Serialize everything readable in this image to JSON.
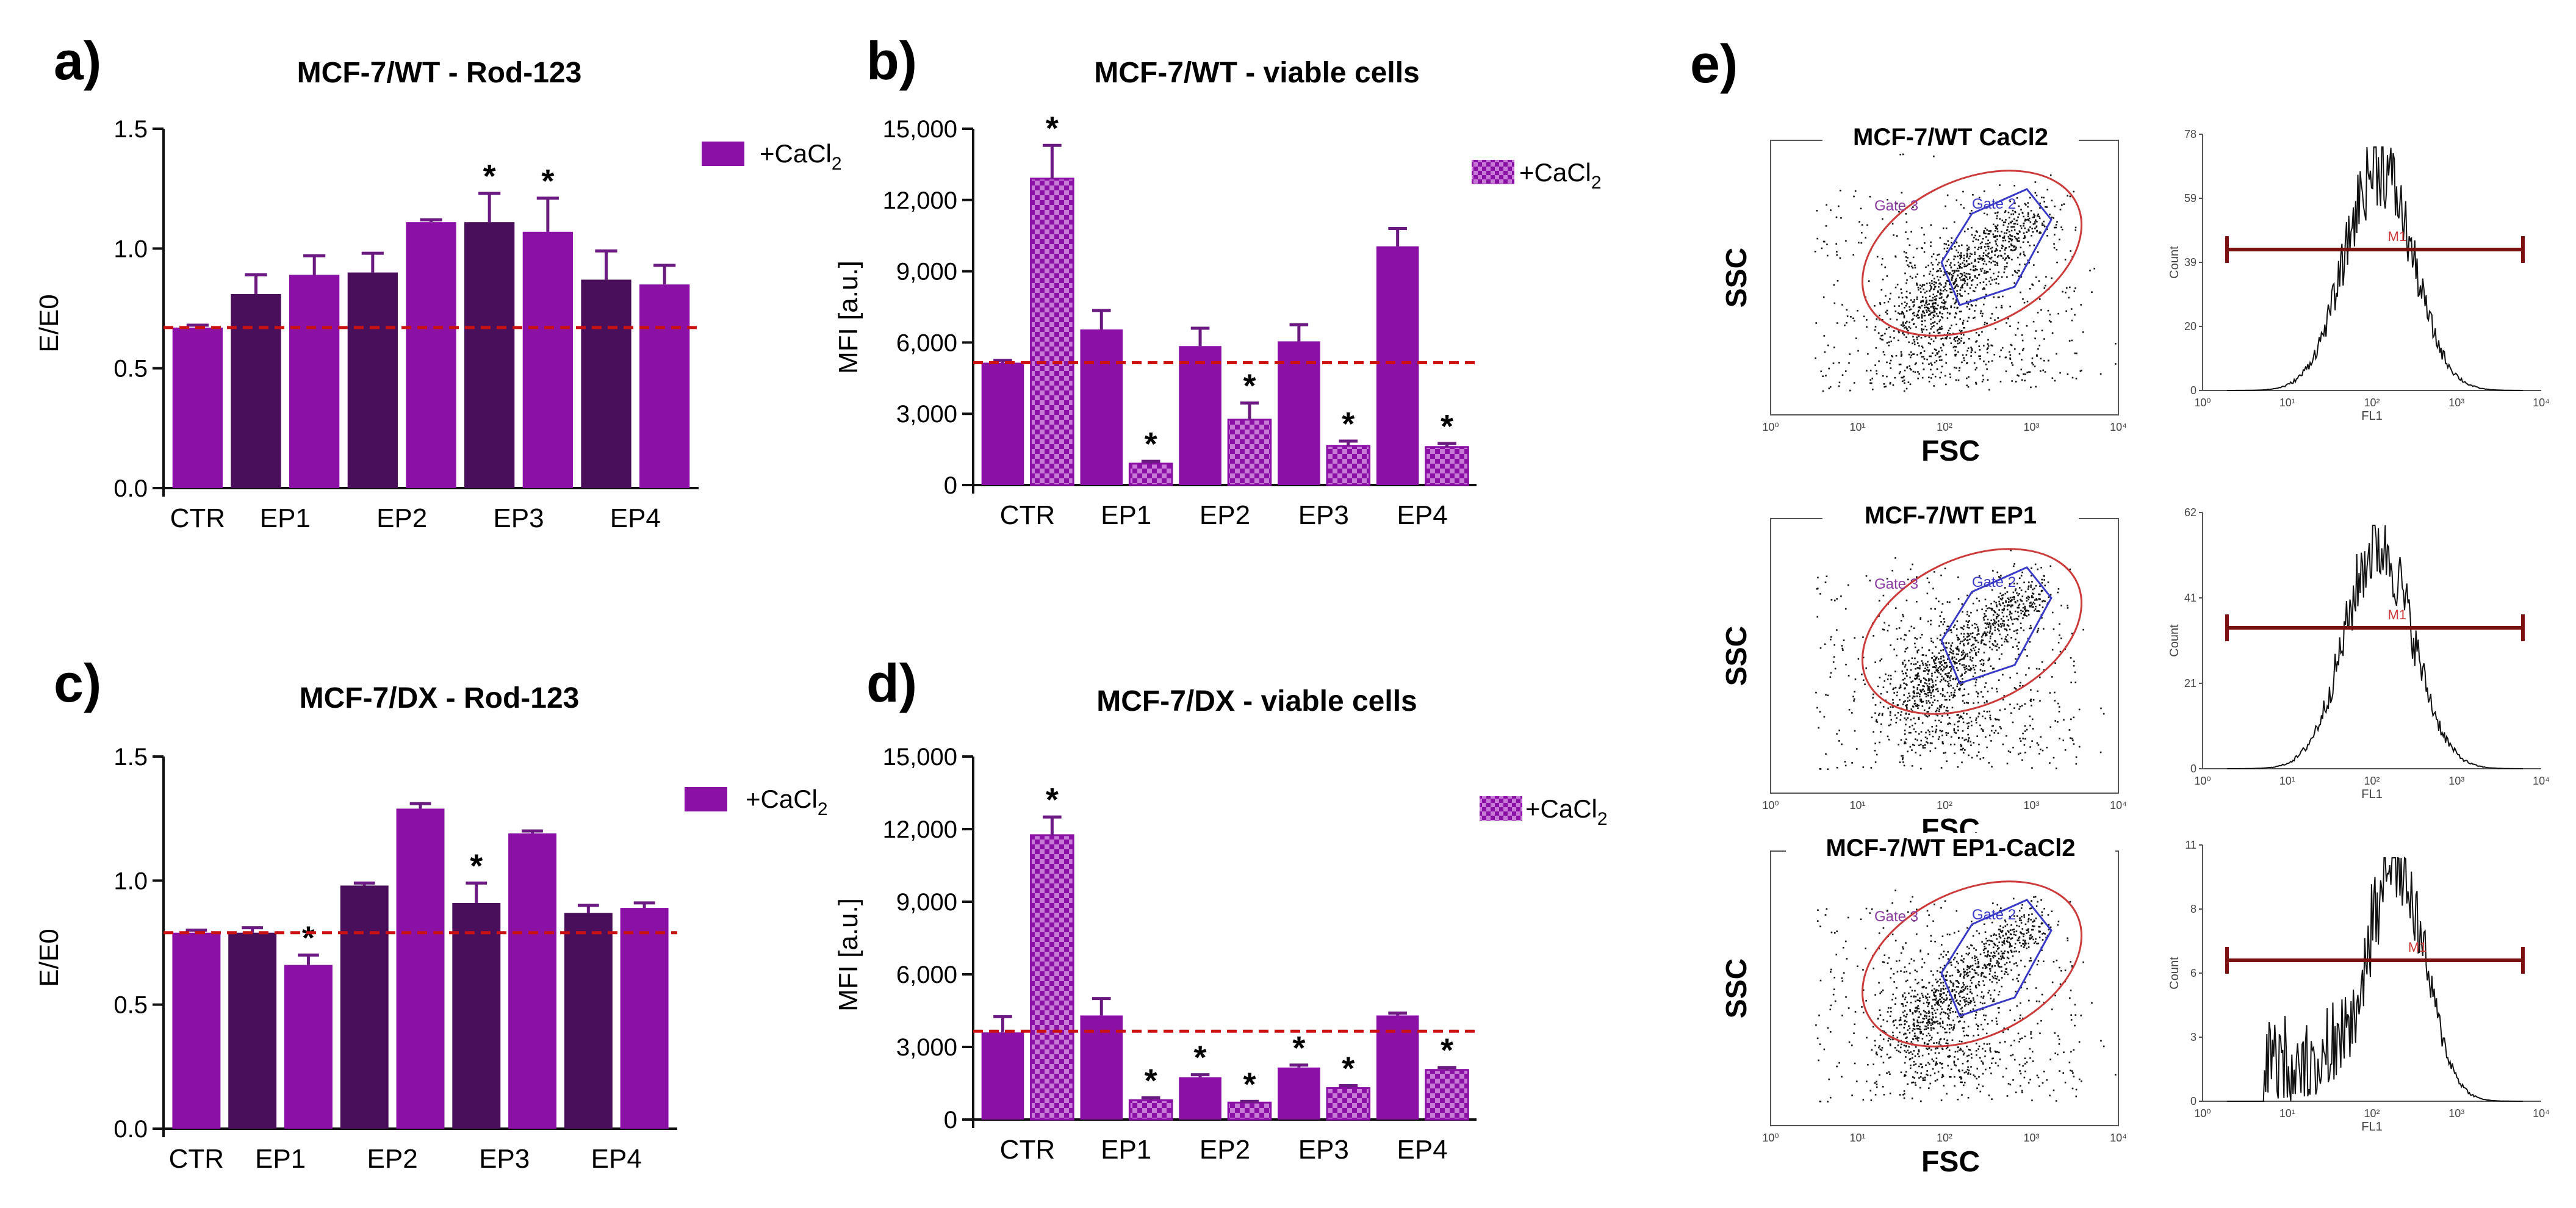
{
  "panels": {
    "a": {
      "label": "a)"
    },
    "b": {
      "label": "b)"
    },
    "c": {
      "label": "c)"
    },
    "d": {
      "label": "d)"
    },
    "e": {
      "label": "e)"
    }
  },
  "colors": {
    "solid_bar": "#8b10a6",
    "dark_bar": "#4a0f5a",
    "check_bar": "#c77ad6",
    "check_dark": "#8b10a6",
    "error": "#6a1a80",
    "reference_line": "#cc1111",
    "gate_red": "#cc3a3a",
    "gate_blue": "#3a3ac8",
    "gate_text": "#8a3aa0",
    "marker_bar": "#7a1010"
  },
  "legend": {
    "cacl2_prefix": "+CaCl",
    "cacl2_sub": "2"
  },
  "chart_data": [
    {
      "id": "a",
      "type": "bar",
      "title": "MCF-7/WT - Rod-123",
      "ylabel": "E/E0",
      "xlabel": "",
      "ylim": [
        0,
        1.5
      ],
      "yticks": [
        0.0,
        0.5,
        1.0,
        1.5
      ],
      "ytick_labels": [
        "0.0",
        "0.5",
        "1.0",
        "1.5"
      ],
      "categories": [
        "CTR",
        "EP1",
        "EP2",
        "EP3",
        "EP4"
      ],
      "reference_line": 0.67,
      "legend": "+CaCl2",
      "bars": [
        {
          "group": "CTR",
          "value": 0.67,
          "error": 0.01,
          "style": "solid",
          "star": false
        },
        {
          "group": "EP1",
          "value": 0.81,
          "error": 0.08,
          "style": "dark",
          "star": false
        },
        {
          "group": "EP1",
          "value": 0.89,
          "error": 0.08,
          "style": "solid",
          "star": false
        },
        {
          "group": "EP2",
          "value": 0.9,
          "error": 0.08,
          "style": "dark",
          "star": false
        },
        {
          "group": "EP2",
          "value": 1.11,
          "error": 0.01,
          "style": "solid",
          "star": false
        },
        {
          "group": "EP3",
          "value": 1.11,
          "error": 0.12,
          "style": "dark",
          "star": true
        },
        {
          "group": "EP3",
          "value": 1.07,
          "error": 0.14,
          "style": "solid",
          "star": true
        },
        {
          "group": "EP4",
          "value": 0.87,
          "error": 0.12,
          "style": "dark",
          "star": false
        },
        {
          "group": "EP4",
          "value": 0.85,
          "error": 0.08,
          "style": "solid",
          "star": false
        }
      ]
    },
    {
      "id": "b",
      "type": "bar",
      "title": "MCF-7/WT - viable cells",
      "ylabel": "MFI [a.u.]",
      "xlabel": "",
      "ylim": [
        0,
        15000
      ],
      "yticks": [
        0,
        3000,
        6000,
        9000,
        12000,
        15000
      ],
      "ytick_labels": [
        "0",
        "3,000",
        "6,000",
        "9,000",
        "12,000",
        "15,000"
      ],
      "categories": [
        "CTR",
        "EP1",
        "EP2",
        "EP3",
        "EP4"
      ],
      "reference_line": 5150,
      "legend": "+CaCl2",
      "bars": [
        {
          "group": "CTR",
          "value": 5150,
          "error": 100,
          "style": "solid",
          "star": false
        },
        {
          "group": "CTR",
          "value": 12900,
          "error": 1400,
          "style": "check",
          "star": true
        },
        {
          "group": "EP1",
          "value": 6550,
          "error": 800,
          "style": "solid",
          "star": false
        },
        {
          "group": "EP1",
          "value": 900,
          "error": 100,
          "style": "check",
          "star": true
        },
        {
          "group": "EP2",
          "value": 5850,
          "error": 750,
          "style": "solid",
          "star": false
        },
        {
          "group": "EP2",
          "value": 2750,
          "error": 700,
          "style": "check",
          "star": true
        },
        {
          "group": "EP3",
          "value": 6050,
          "error": 700,
          "style": "solid",
          "star": false
        },
        {
          "group": "EP3",
          "value": 1650,
          "error": 200,
          "style": "check",
          "star": true
        },
        {
          "group": "EP4",
          "value": 10050,
          "error": 750,
          "style": "solid",
          "star": false
        },
        {
          "group": "EP4",
          "value": 1600,
          "error": 150,
          "style": "check",
          "star": true
        }
      ]
    },
    {
      "id": "c",
      "type": "bar",
      "title": "MCF-7/DX - Rod-123",
      "ylabel": "E/E0",
      "xlabel": "",
      "ylim": [
        0,
        1.5
      ],
      "yticks": [
        0.0,
        0.5,
        1.0,
        1.5
      ],
      "ytick_labels": [
        "0.0",
        "0.5",
        "1.0",
        "1.5"
      ],
      "categories": [
        "CTR",
        "EP1",
        "EP2",
        "EP3",
        "EP4"
      ],
      "reference_line": 0.79,
      "legend": "+CaCl2",
      "bars": [
        {
          "group": "CTR",
          "value": 0.79,
          "error": 0.01,
          "style": "solid",
          "star": false
        },
        {
          "group": "EP1",
          "value": 0.79,
          "error": 0.02,
          "style": "dark",
          "star": false
        },
        {
          "group": "EP1",
          "value": 0.66,
          "error": 0.04,
          "style": "solid",
          "star": true
        },
        {
          "group": "EP2",
          "value": 0.98,
          "error": 0.01,
          "style": "dark",
          "star": false
        },
        {
          "group": "EP2",
          "value": 1.29,
          "error": 0.02,
          "style": "solid",
          "star": false
        },
        {
          "group": "EP3",
          "value": 0.91,
          "error": 0.08,
          "style": "dark",
          "star": true
        },
        {
          "group": "EP3",
          "value": 1.19,
          "error": 0.01,
          "style": "solid",
          "star": false
        },
        {
          "group": "EP4",
          "value": 0.87,
          "error": 0.03,
          "style": "dark",
          "star": false
        },
        {
          "group": "EP4",
          "value": 0.89,
          "error": 0.02,
          "style": "solid",
          "star": false
        }
      ]
    },
    {
      "id": "d",
      "type": "bar",
      "title": "MCF-7/DX - viable cells",
      "ylabel": "MFI [a.u.]",
      "xlabel": "",
      "ylim": [
        0,
        15000
      ],
      "yticks": [
        0,
        3000,
        6000,
        9000,
        12000,
        15000
      ],
      "ytick_labels": [
        "0",
        "3,000",
        "6,000",
        "9,000",
        "12,000",
        "15,000"
      ],
      "categories": [
        "CTR",
        "EP1",
        "EP2",
        "EP3",
        "EP4"
      ],
      "reference_line": 3650,
      "legend": "+CaCl2",
      "bars": [
        {
          "group": "CTR",
          "value": 3600,
          "error": 650,
          "style": "solid",
          "star": false
        },
        {
          "group": "CTR",
          "value": 11750,
          "error": 750,
          "style": "check",
          "star": true
        },
        {
          "group": "EP1",
          "value": 4300,
          "error": 700,
          "style": "solid",
          "star": false
        },
        {
          "group": "EP1",
          "value": 800,
          "error": 100,
          "style": "check",
          "star": true
        },
        {
          "group": "EP2",
          "value": 1750,
          "error": 100,
          "style": "solid",
          "star": true
        },
        {
          "group": "EP2",
          "value": 700,
          "error": 50,
          "style": "check",
          "star": true
        },
        {
          "group": "EP3",
          "value": 2150,
          "error": 100,
          "style": "solid",
          "star": true
        },
        {
          "group": "EP3",
          "value": 1300,
          "error": 100,
          "style": "check",
          "star": true
        },
        {
          "group": "EP4",
          "value": 4300,
          "error": 100,
          "style": "solid",
          "star": false
        },
        {
          "group": "EP4",
          "value": 2050,
          "error": 100,
          "style": "check",
          "star": true
        }
      ]
    }
  ],
  "flow": {
    "rows": [
      {
        "title": "MCF-7/WT CaCl2",
        "marker": "M1"
      },
      {
        "title": "MCF-7/WT EP1",
        "marker": "M1"
      },
      {
        "title": "MCF-7/WT EP1-CaCl2",
        "marker": "M1"
      }
    ],
    "scatter": {
      "xlabel": "FSC",
      "ylabel": "SSC",
      "gate3": "Gate 3",
      "gate2": "Gate 2",
      "decades": [
        "10⁰",
        "10¹",
        "10²",
        "10³",
        "10⁴"
      ]
    },
    "histogram": {
      "xlabel": "FL1",
      "ylabel": "Count",
      "decades": [
        "10⁰",
        "10¹",
        "10²",
        "10³",
        "10⁴"
      ],
      "yticks": [
        [
          "0",
          "20",
          "39",
          "59",
          "78"
        ],
        [
          "0",
          "21",
          "41",
          "62"
        ],
        [
          "0",
          "3",
          "6",
          "8",
          "11"
        ]
      ]
    }
  }
}
